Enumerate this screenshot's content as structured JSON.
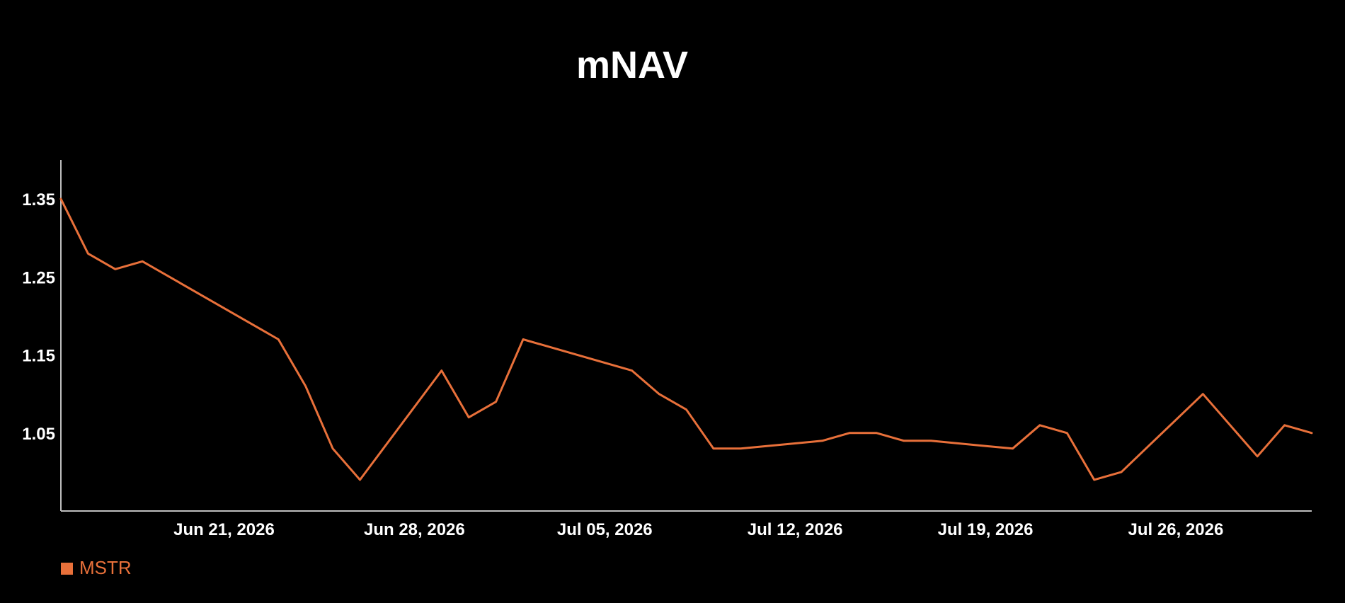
{
  "chart_data": {
    "type": "line",
    "title": "mNAV",
    "xlabel": "",
    "ylabel": "",
    "x_axis": {
      "type": "date",
      "range": [
        "2026-06-15",
        "2026-07-31"
      ],
      "ticks": [
        "2026-06-21",
        "2026-06-28",
        "2026-07-05",
        "2026-07-12",
        "2026-07-19",
        "2026-07-26"
      ],
      "tick_labels": [
        "Jun 21, 2026",
        "Jun 28, 2026",
        "Jul 05, 2026",
        "Jul 12, 2026",
        "Jul 19, 2026",
        "Jul 26, 2026"
      ]
    },
    "y_axis": {
      "range": [
        0.95,
        1.4
      ],
      "ticks": [
        1.05,
        1.15,
        1.25,
        1.35
      ],
      "tick_labels": [
        "1.05",
        "1.15",
        "1.25",
        "1.35"
      ]
    },
    "grid": false,
    "legend": {
      "position": "bottom-left",
      "entries": [
        "MSTR"
      ]
    },
    "series": [
      {
        "name": "MSTR",
        "color": "#E8703A",
        "points": [
          {
            "x": "2026-06-15",
            "y": 1.35
          },
          {
            "x": "2026-06-16",
            "y": 1.28
          },
          {
            "x": "2026-06-17",
            "y": 1.26
          },
          {
            "x": "2026-06-18",
            "y": 1.27
          },
          {
            "x": "2026-06-23",
            "y": 1.17
          },
          {
            "x": "2026-06-24",
            "y": 1.11
          },
          {
            "x": "2026-06-25",
            "y": 1.03
          },
          {
            "x": "2026-06-26",
            "y": 0.99
          },
          {
            "x": "2026-06-29",
            "y": 1.13
          },
          {
            "x": "2026-06-30",
            "y": 1.07
          },
          {
            "x": "2026-07-01",
            "y": 1.09
          },
          {
            "x": "2026-07-02",
            "y": 1.17
          },
          {
            "x": "2026-07-06",
            "y": 1.13
          },
          {
            "x": "2026-07-07",
            "y": 1.1
          },
          {
            "x": "2026-07-08",
            "y": 1.08
          },
          {
            "x": "2026-07-09",
            "y": 1.03
          },
          {
            "x": "2026-07-10",
            "y": 1.03
          },
          {
            "x": "2026-07-13",
            "y": 1.04
          },
          {
            "x": "2026-07-14",
            "y": 1.05
          },
          {
            "x": "2026-07-15",
            "y": 1.05
          },
          {
            "x": "2026-07-16",
            "y": 1.04
          },
          {
            "x": "2026-07-17",
            "y": 1.04
          },
          {
            "x": "2026-07-20",
            "y": 1.03
          },
          {
            "x": "2026-07-21",
            "y": 1.06
          },
          {
            "x": "2026-07-22",
            "y": 1.05
          },
          {
            "x": "2026-07-23",
            "y": 0.99
          },
          {
            "x": "2026-07-24",
            "y": 1.0
          },
          {
            "x": "2026-07-27",
            "y": 1.1
          },
          {
            "x": "2026-07-29",
            "y": 1.02
          },
          {
            "x": "2026-07-30",
            "y": 1.06
          },
          {
            "x": "2026-07-31",
            "y": 1.05
          }
        ]
      }
    ]
  }
}
